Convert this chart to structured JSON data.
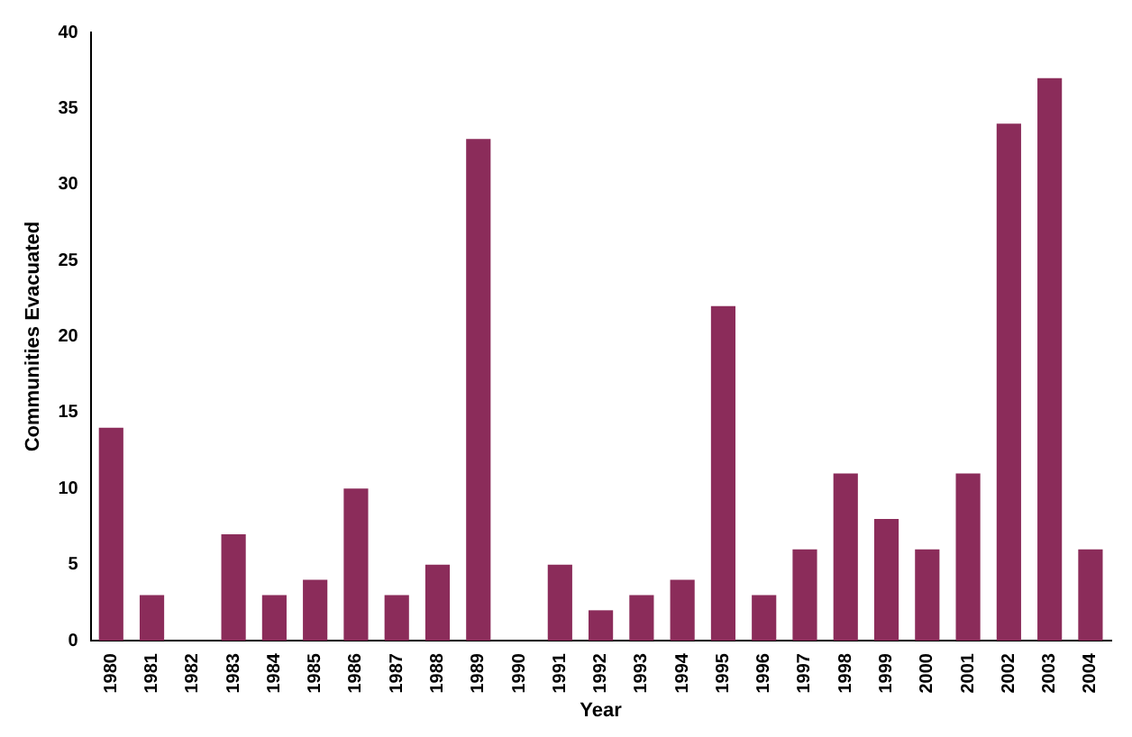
{
  "chart_data": {
    "type": "bar",
    "xlabel": "Year",
    "ylabel": "Communities Evacuated",
    "categories": [
      "1980",
      "1981",
      "1982",
      "1983",
      "1984",
      "1985",
      "1986",
      "1987",
      "1988",
      "1989",
      "1990",
      "1991",
      "1992",
      "1993",
      "1994",
      "1995",
      "1996",
      "1997",
      "1998",
      "1999",
      "2000",
      "2001",
      "2002",
      "2003",
      "2004"
    ],
    "values": [
      14,
      3,
      0,
      7,
      3,
      4,
      10,
      3,
      5,
      33,
      0,
      5,
      2,
      3,
      4,
      22,
      3,
      6,
      11,
      8,
      6,
      11,
      34,
      37,
      6
    ],
    "color": "#8b2c5a",
    "ylim": [
      0,
      40
    ],
    "yticks": [
      0,
      5,
      10,
      15,
      20,
      25,
      30,
      35,
      40
    ],
    "grid": false,
    "legend": false
  }
}
